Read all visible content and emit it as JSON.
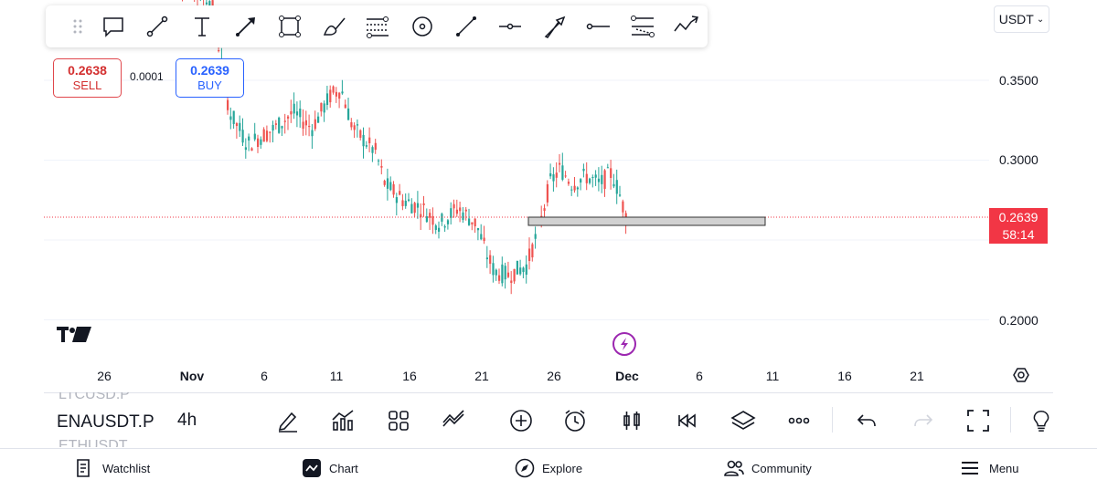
{
  "chart": {
    "symbol": "ENAUSDT.P",
    "interval": "4h",
    "currency": "USDT",
    "price_axis": [
      "0.3500",
      "0.3000",
      "0.2000"
    ],
    "last_price": "0.2639",
    "countdown": "58:14",
    "date_axis": [
      "26",
      "Nov",
      "6",
      "11",
      "16",
      "21",
      "26",
      "Dec",
      "6",
      "11",
      "16",
      "21"
    ],
    "bold_dates": [
      "Nov",
      "Dec"
    ],
    "candles_close_path_hint": "uptrend-then-downtrend"
  },
  "trade": {
    "sell_price": "0.2638",
    "sell_label": "SELL",
    "buy_price": "0.2639",
    "buy_label": "BUY",
    "spread": "0.0001"
  },
  "drawing_toolbar": {
    "tools": [
      "callout-icon",
      "trend-line-icon",
      "text-icon",
      "arrow-icon",
      "rectangle-icon",
      "brush-icon",
      "fib-icon",
      "circle-icon",
      "line-icon",
      "horizontal-ray-icon",
      "arrow-marker-icon",
      "horizontal-line-icon",
      "parallel-channel-icon",
      "path-icon"
    ]
  },
  "symbols_list": {
    "above": "LTCUSD.P",
    "current": "ENAUSDT.P",
    "below": "ETHUSDT"
  },
  "bottom_nav": {
    "watchlist": "Watchlist",
    "chart": "Chart",
    "explore": "Explore",
    "community": "Community",
    "menu": "Menu"
  },
  "colors": {
    "up": "#26a69a",
    "down": "#ef5350",
    "last_price_bg": "#f23645",
    "sell": "#d32f2f",
    "buy": "#2962ff"
  }
}
